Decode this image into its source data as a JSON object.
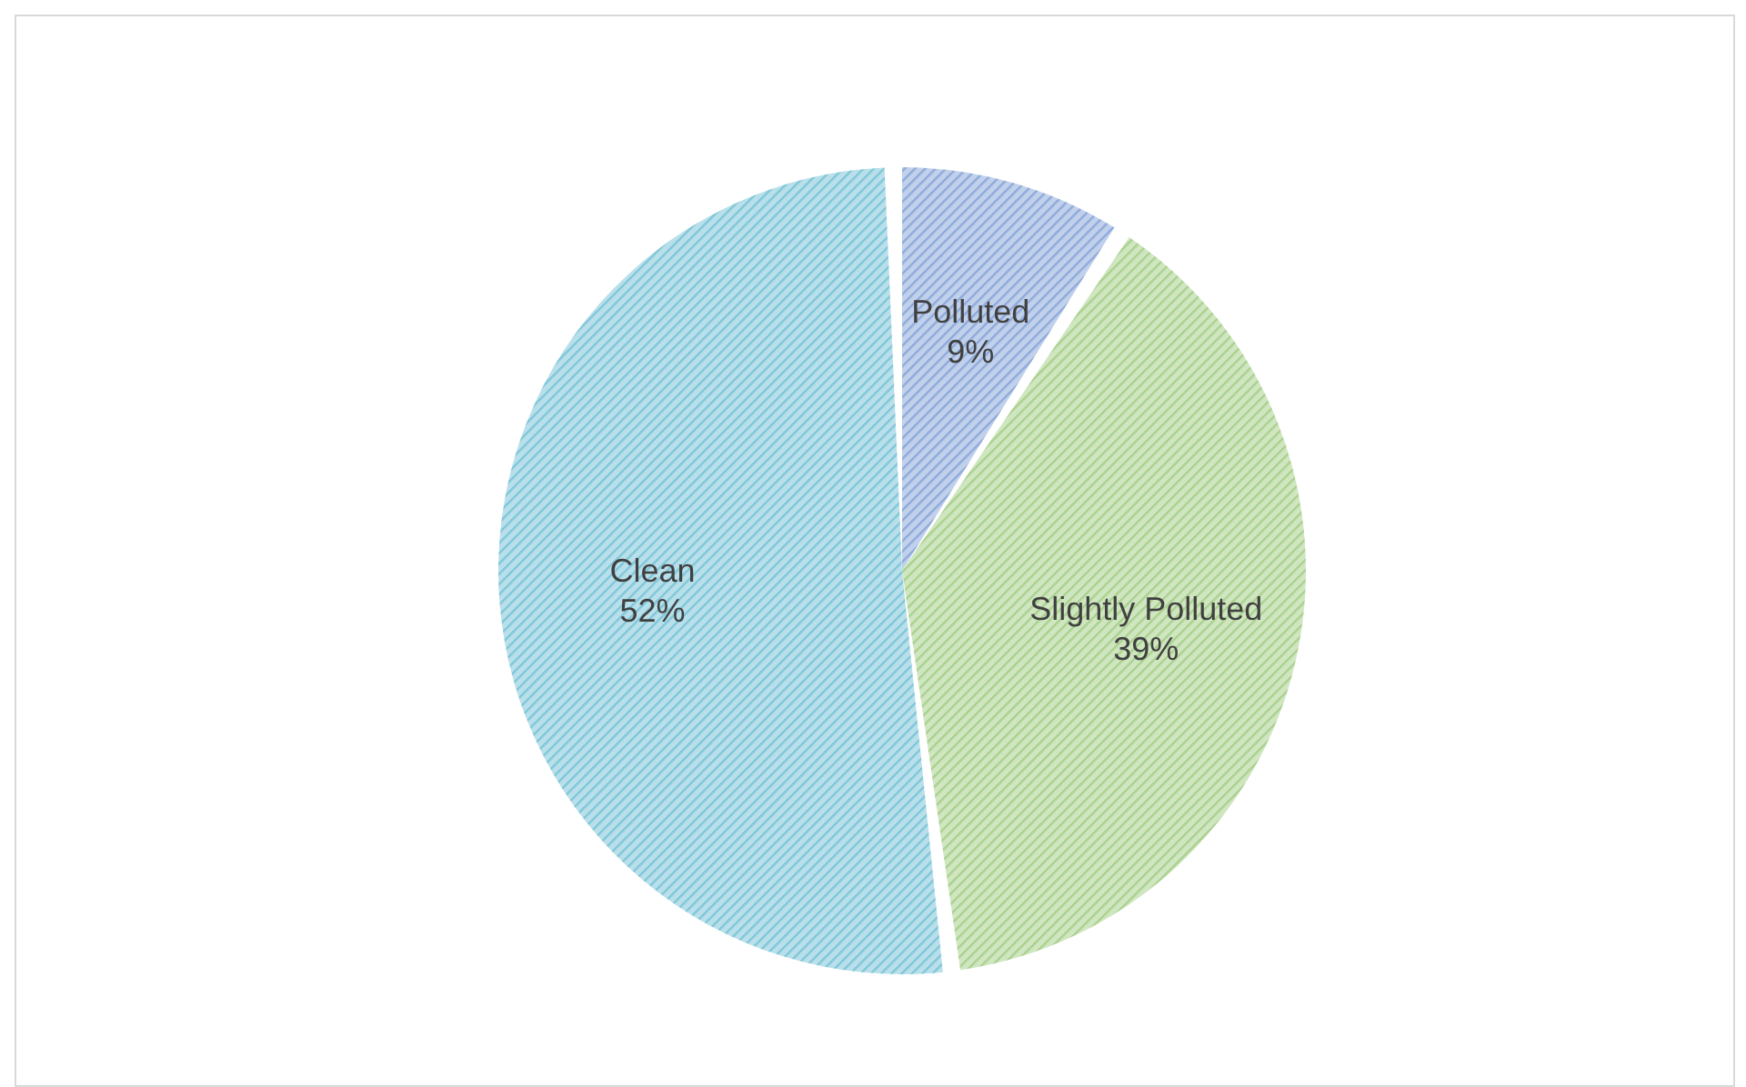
{
  "chart_data": {
    "type": "pie",
    "categories": [
      "Polluted",
      "Slightly Polluted",
      "Clean"
    ],
    "values": [
      9,
      39,
      52
    ],
    "value_labels": [
      "9%",
      "39%",
      "52%"
    ],
    "colors": [
      "#8eaadb",
      "#a9d18e",
      "#7fc6d9"
    ]
  }
}
